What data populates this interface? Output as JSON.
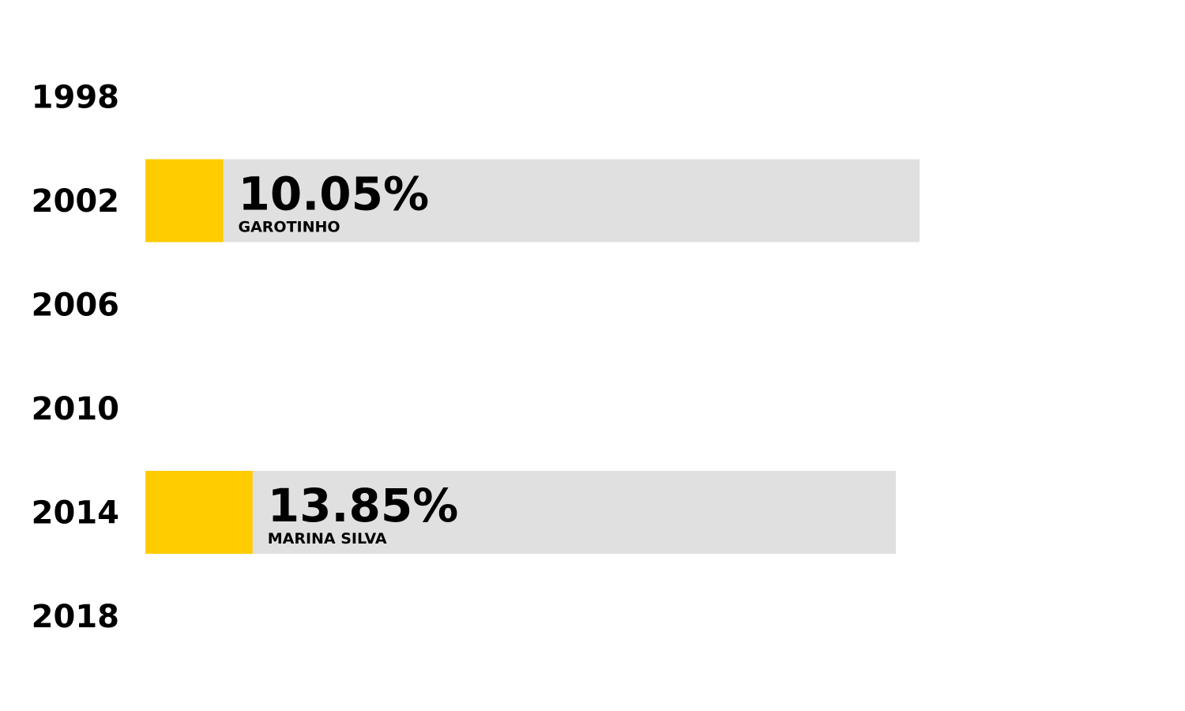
{
  "chart_data": {
    "type": "bar",
    "orientation": "horizontal",
    "categories": [
      "1998",
      "2002",
      "2006",
      "2010",
      "2014",
      "2018"
    ],
    "series": [
      {
        "values": [
          null,
          10.05,
          null,
          null,
          13.85,
          null
        ],
        "value_labels": [
          "",
          "10.05%",
          "",
          "",
          "13.85%",
          ""
        ],
        "candidates": [
          "",
          "GAROTINHO",
          "",
          "",
          "MARINA SILVA",
          ""
        ]
      }
    ],
    "colors": {
      "bar_fill": "#ffcc00",
      "bar_track": "#e0e0e0",
      "text": "#000000"
    },
    "xlim": [
      0,
      100
    ],
    "grid": false,
    "legend": "none"
  }
}
